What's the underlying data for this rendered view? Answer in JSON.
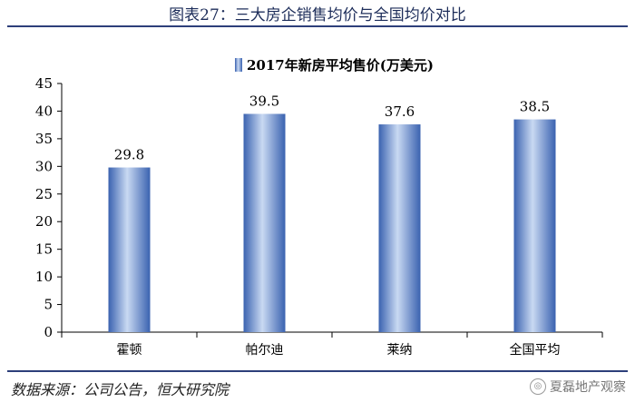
{
  "figure": {
    "title": "图表27：三大房企销售均价与全国均价对比",
    "source": "数据来源：公司公告，恒大研究院",
    "watermark": "夏磊地产观察"
  },
  "colors": {
    "bar": "#4a78c8",
    "bar_light": "#c8d8f0",
    "rule": "#2d3f7a"
  },
  "chart_data": {
    "type": "bar",
    "categories": [
      "霍顿",
      "帕尔迪",
      "莱纳",
      "全国平均"
    ],
    "series": [
      {
        "name": "2017年新房平均售价(万美元)",
        "values": [
          29.8,
          39.5,
          37.6,
          38.5
        ]
      }
    ],
    "value_labels": [
      "29.8",
      "39.5",
      "37.6",
      "38.5"
    ],
    "ylim": [
      0,
      45
    ],
    "yticks": [
      0,
      5,
      10,
      15,
      20,
      25,
      30,
      35,
      40,
      45
    ],
    "grid": false,
    "legend_position": "top-center"
  }
}
